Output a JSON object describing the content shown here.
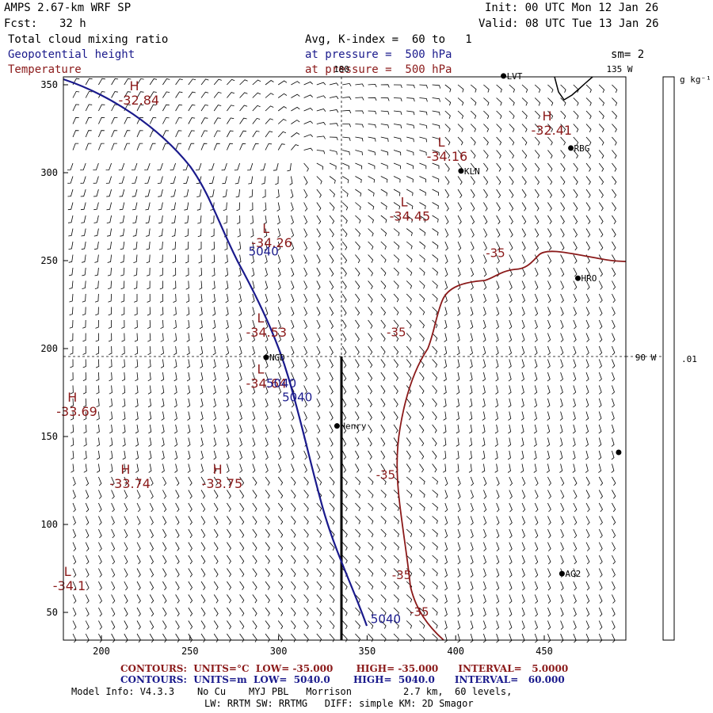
{
  "header": {
    "model": "AMPS 2.67-km WRF SP",
    "fcst_label": "Fcst:",
    "fcst_value": "32 h",
    "init": "Init: 00 UTC Mon 12 Jan 26",
    "valid": "Valid: 08 UTC Tue 13 Jan 26",
    "field1": "Total cloud mixing ratio",
    "field2": "Geopotential height",
    "field3": "Temperature",
    "avg_line": "Avg, K-index =  60 to   1",
    "pressure_line1": "at pressure =  500 hPa",
    "pressure_line2": "at pressure =  500 hPa",
    "smoothing": "sm= 2",
    "colorbar_unit": "g kg⁻¹",
    "colorbar_value": ".01"
  },
  "map": {
    "lon_labels": [
      "180",
      "135 W",
      "90 W"
    ],
    "x_ticks": [
      "200",
      "250",
      "300",
      "350",
      "400",
      "450"
    ],
    "y_ticks": [
      "350",
      "300",
      "250",
      "200",
      "150",
      "100",
      "50"
    ],
    "stations": [
      {
        "name": "RBG",
        "x": 465,
        "y": 314
      },
      {
        "name": "KLN",
        "x": 403,
        "y": 301
      },
      {
        "name": "HRO",
        "x": 469,
        "y": 240
      },
      {
        "name": "NGD",
        "x": 293,
        "y": 195
      },
      {
        "name": "Henry",
        "x": 333,
        "y": 156
      },
      {
        "name": "AG2",
        "x": 460,
        "y": 72
      },
      {
        "name": "LVT",
        "x": 427,
        "y": 355
      },
      {
        "name": "",
        "x": 492,
        "y": 141
      }
    ],
    "extrema": [
      {
        "letter": "H",
        "value": "-32.84",
        "x": 215,
        "y": 345
      },
      {
        "letter": "H",
        "value": "-32.41",
        "x": 448,
        "y": 328
      },
      {
        "letter": "L",
        "value": "-34.16",
        "x": 389,
        "y": 313
      },
      {
        "letter": "L",
        "value": "-34.45",
        "x": 368,
        "y": 279
      },
      {
        "letter": "L",
        "value": "-34.26",
        "x": 290,
        "y": 264
      },
      {
        "letter": "L",
        "value": "-34.53",
        "x": 287,
        "y": 213
      },
      {
        "letter": "L",
        "value": "-34.64",
        "x": 287,
        "y": 184
      },
      {
        "letter": "H",
        "value": "-33.69",
        "x": 180,
        "y": 168
      },
      {
        "letter": "H",
        "value": "-33.74",
        "x": 210,
        "y": 127
      },
      {
        "letter": "H",
        "value": "-33.75",
        "x": 262,
        "y": 127
      },
      {
        "letter": "L",
        "value": "-34.1",
        "x": 178,
        "y": 69
      }
    ],
    "contour_labels": [
      {
        "text": "5040",
        "color": "blue",
        "x": 283,
        "y": 253
      },
      {
        "text": "5040",
        "color": "blue",
        "x": 293,
        "y": 178
      },
      {
        "text": "5040",
        "color": "blue",
        "x": 302,
        "y": 170
      },
      {
        "text": "5040",
        "color": "blue",
        "x": 352,
        "y": 44
      },
      {
        "text": "-35",
        "color": "red",
        "x": 417,
        "y": 252
      },
      {
        "text": "-35",
        "color": "red",
        "x": 361,
        "y": 207
      },
      {
        "text": "-35",
        "color": "red",
        "x": 355,
        "y": 126
      },
      {
        "text": "-35",
        "color": "red",
        "x": 364,
        "y": 69
      },
      {
        "text": "-35",
        "color": "red",
        "x": 374,
        "y": 48
      }
    ]
  },
  "footer": {
    "contours_red": "CONTOURS:  UNITS=°C  LOW= -35.000       HIGH= -35.000      INTERVAL=   5.0000",
    "contours_blue": "CONTOURS:  UNITS=m  LOW=  5040.0       HIGH=  5040.0      INTERVAL=   60.000",
    "model_info": "Model Info: V4.3.3    No Cu    MYJ PBL   Morrison         2.7 km,  60 levels,",
    "physics": "LW: RRTM SW: RRTMG   DIFF: simple KM: 2D Smagor"
  },
  "colors": {
    "blue_contour": "#1a1a8c",
    "red_contour": "#8b1a1a",
    "text": "#000000"
  }
}
